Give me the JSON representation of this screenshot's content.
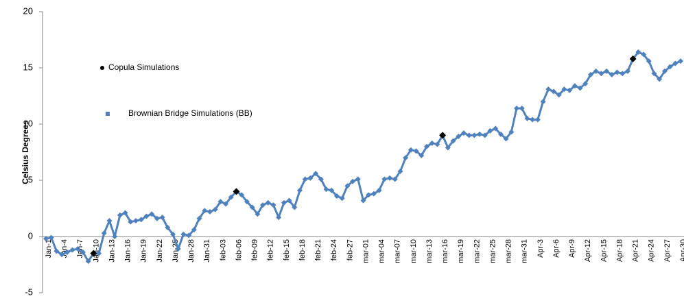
{
  "chart_data": {
    "type": "line",
    "y_label": "Celsius Degrees",
    "ylim": [
      -5,
      20
    ],
    "yticks": [
      -5,
      0,
      5,
      10,
      15,
      20
    ],
    "categories": [
      "Jan-1",
      null,
      null,
      "Jan-4",
      null,
      null,
      "Jan-7",
      null,
      null,
      "Jan-10",
      null,
      null,
      "Jan-13",
      null,
      null,
      "Jan-16",
      null,
      null,
      "Jan-19",
      null,
      null,
      "Jan-22",
      null,
      null,
      "Jan-25",
      null,
      null,
      "Jan-28",
      null,
      null,
      "Jan-31",
      null,
      null,
      "feb-03",
      null,
      null,
      "feb-06",
      null,
      null,
      "feb-09",
      null,
      null,
      "feb-12",
      null,
      null,
      "feb-15",
      null,
      null,
      "feb-18",
      null,
      null,
      "feb-21",
      null,
      null,
      "feb-24",
      null,
      null,
      "feb-27",
      null,
      null,
      "mar-01",
      null,
      null,
      "mar-04",
      null,
      null,
      "mar-07",
      null,
      null,
      "mar-10",
      null,
      null,
      "mar-13",
      null,
      null,
      "mar-16",
      null,
      null,
      "mar-19",
      null,
      null,
      "mar-22",
      null,
      null,
      "mar-25",
      null,
      null,
      "mar-28",
      null,
      null,
      "mar-31",
      null,
      null,
      "Apr-3",
      null,
      null,
      "Apr-6",
      null,
      null,
      "Apr-9",
      null,
      null,
      "Apr-12",
      null,
      null,
      "Apr-15",
      null,
      null,
      "Apr-18",
      null,
      null,
      "Apr-21",
      null,
      null,
      "Apr-24",
      null,
      null,
      "Apr-27",
      null,
      null,
      "Apr-30"
    ],
    "series": [
      {
        "name": "Copula Simulations",
        "color": "#000000",
        "line": false,
        "values": [
          null,
          null,
          null,
          null,
          null,
          null,
          null,
          null,
          null,
          -1.5,
          null,
          null,
          null,
          null,
          null,
          null,
          null,
          null,
          null,
          null,
          null,
          null,
          null,
          null,
          null,
          null,
          null,
          null,
          null,
          null,
          null,
          null,
          null,
          null,
          null,
          null,
          4.0,
          null,
          null,
          null,
          null,
          null,
          null,
          null,
          null,
          null,
          null,
          null,
          null,
          null,
          null,
          null,
          null,
          null,
          null,
          null,
          null,
          null,
          null,
          null,
          null,
          null,
          null,
          null,
          null,
          null,
          null,
          null,
          null,
          null,
          null,
          null,
          null,
          null,
          null,
          9.0,
          null,
          null,
          null,
          null,
          null,
          null,
          null,
          null,
          null,
          null,
          null,
          null,
          null,
          null,
          null,
          null,
          null,
          null,
          null,
          null,
          null,
          null,
          null,
          null,
          null,
          null,
          null,
          null,
          null,
          null,
          null,
          null,
          null,
          null,
          null,
          15.8,
          null,
          null,
          null,
          null,
          null,
          null,
          null,
          null,
          null
        ]
      },
      {
        "name": "Brownian Bridge Simulations (BB)",
        "color": "#4f81bd",
        "line": true,
        "values": [
          -0.2,
          -0.1,
          -1.3,
          -1.6,
          -1.4,
          -1.2,
          -1.1,
          -1.4,
          -2.2,
          -1.5,
          -1.5,
          0.3,
          1.4,
          0.0,
          1.9,
          2.1,
          1.3,
          1.4,
          1.5,
          1.8,
          2.0,
          1.6,
          1.7,
          0.8,
          0.2,
          -1.1,
          0.2,
          0.1,
          0.6,
          1.6,
          2.3,
          2.2,
          2.4,
          3.1,
          2.9,
          3.5,
          4.0,
          3.7,
          3.1,
          2.6,
          2.0,
          2.8,
          3.0,
          2.8,
          1.7,
          3.0,
          3.2,
          2.6,
          4.1,
          5.1,
          5.2,
          5.6,
          5.1,
          4.2,
          4.1,
          3.6,
          3.4,
          4.5,
          4.9,
          5.1,
          3.2,
          3.7,
          3.8,
          4.1,
          5.1,
          5.2,
          5.1,
          5.8,
          7.0,
          7.7,
          7.6,
          7.2,
          8.0,
          8.3,
          8.2,
          9.0,
          7.9,
          8.5,
          8.9,
          9.2,
          9.0,
          9.0,
          9.1,
          9.0,
          9.4,
          9.6,
          9.1,
          8.7,
          9.3,
          11.4,
          11.4,
          10.5,
          10.4,
          10.4,
          12.0,
          13.1,
          12.9,
          12.6,
          13.1,
          13.0,
          13.4,
          13.2,
          13.6,
          14.4,
          14.7,
          14.5,
          14.7,
          14.4,
          14.6,
          14.5,
          14.7,
          15.8,
          16.4,
          16.2,
          15.6,
          14.5,
          14.0,
          14.7,
          15.1,
          15.4,
          15.6
        ]
      }
    ]
  }
}
